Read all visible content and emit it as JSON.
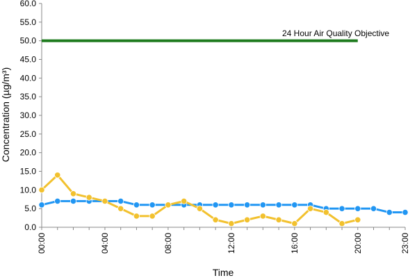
{
  "chart_data": {
    "type": "line",
    "xlabel": "Time",
    "ylabel": "Concentration (µg/m³)",
    "ylim": [
      0,
      60
    ],
    "y_ticks": [
      "0.0",
      "5.0",
      "10.0",
      "15.0",
      "20.0",
      "25.0",
      "30.0",
      "35.0",
      "40.0",
      "45.0",
      "50.0",
      "55.0",
      "60.0"
    ],
    "x_ticks": [
      "00:00",
      "04:00",
      "08:00",
      "12:00",
      "16:00",
      "20:00",
      "23:00"
    ],
    "x_tick_hours": [
      0,
      4,
      8,
      12,
      16,
      20,
      23
    ],
    "grid": false,
    "legend": "none",
    "annotations": [
      {
        "text": "24 Hour Air Quality Objective",
        "value": 50
      }
    ],
    "series": [
      {
        "color": "#2196F3",
        "x": [
          0,
          1,
          2,
          3,
          4,
          5,
          6,
          7,
          8,
          9,
          10,
          11,
          12,
          13,
          14,
          15,
          16,
          17,
          18,
          19,
          20,
          21,
          22,
          23
        ],
        "values": [
          6,
          7,
          7,
          7,
          7,
          7,
          6,
          6,
          6,
          6,
          6,
          6,
          6,
          6,
          6,
          6,
          6,
          6,
          5,
          5,
          5,
          5,
          4,
          4
        ]
      },
      {
        "color": "#F2C12E",
        "x": [
          0,
          1,
          2,
          3,
          4,
          5,
          6,
          7,
          8,
          9,
          10,
          11,
          12,
          13,
          14,
          15,
          16,
          17,
          18,
          19,
          20
        ],
        "values": [
          10,
          14,
          9,
          8,
          7,
          5,
          3,
          3,
          6,
          7,
          5,
          2,
          1,
          2,
          3,
          2,
          1,
          5,
          4,
          1,
          2
        ]
      },
      {
        "color": "#1E7B1E",
        "x": [
          0,
          20
        ],
        "values": [
          50,
          50
        ]
      }
    ]
  }
}
